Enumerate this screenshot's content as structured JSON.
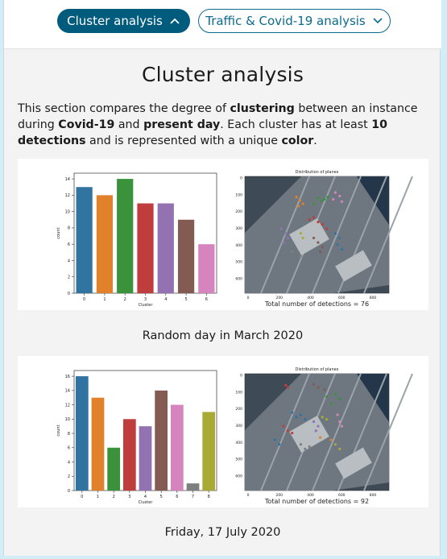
{
  "tabs": {
    "active_label": "Cluster analysis",
    "other_label": "Traffic & Covid-19 analysis"
  },
  "section": {
    "title": "Cluster analysis",
    "intro": {
      "t1": "This section compares the degree of ",
      "b1": "clustering",
      "t2": " between an instance during ",
      "b2": "Covid-19",
      "t3": " and ",
      "b3": "present day",
      "t4": ". Each cluster has at least ",
      "b4": "10 detections",
      "t5": " and is represented with a unique ",
      "b5": "color",
      "t6": "."
    }
  },
  "colors": {
    "accent": "#005b7c",
    "palette": [
      "#3274a1",
      "#e1812c",
      "#3a923a",
      "#c03d3e",
      "#9372b2",
      "#845b53",
      "#d684bd",
      "#7f7f7f",
      "#a9aa35"
    ]
  },
  "figures": [
    {
      "caption": "Random day in March 2020",
      "map": {
        "title": "Distribution of planes",
        "detections_text": "Total number of detections = 76",
        "x_ticks": [
          "0",
          "200",
          "400",
          "600",
          "800"
        ],
        "y_ticks": [
          "0",
          "100",
          "200",
          "300",
          "400",
          "500",
          "600"
        ]
      },
      "chart_data": {
        "type": "bar",
        "categories": [
          "0",
          "1",
          "2",
          "3",
          "4",
          "5",
          "6"
        ],
        "values": [
          13,
          12,
          14,
          11,
          11,
          9,
          6
        ],
        "xlabel": "Cluster",
        "ylabel": "count",
        "ylim": [
          0,
          14.7
        ],
        "yticks": [
          0,
          2,
          4,
          6,
          8,
          10,
          12,
          14
        ],
        "grid": false
      }
    },
    {
      "caption": "Friday, 17 July 2020",
      "map": {
        "title": "Distribution of planes",
        "detections_text": "Total number of detections = 92",
        "x_ticks": [
          "0",
          "200",
          "400",
          "600",
          "800"
        ],
        "y_ticks": [
          "0",
          "100",
          "200",
          "300",
          "400",
          "500",
          "600"
        ]
      },
      "chart_data": {
        "type": "bar",
        "categories": [
          "0",
          "1",
          "2",
          "3",
          "4",
          "5",
          "6",
          "7",
          "8"
        ],
        "values": [
          16,
          13,
          6,
          10,
          9,
          14,
          12,
          1,
          11
        ],
        "xlabel": "Cluster",
        "ylabel": "count",
        "ylim": [
          0,
          16.8
        ],
        "yticks": [
          0,
          2,
          4,
          6,
          8,
          10,
          12,
          14,
          16
        ],
        "grid": false
      }
    }
  ]
}
